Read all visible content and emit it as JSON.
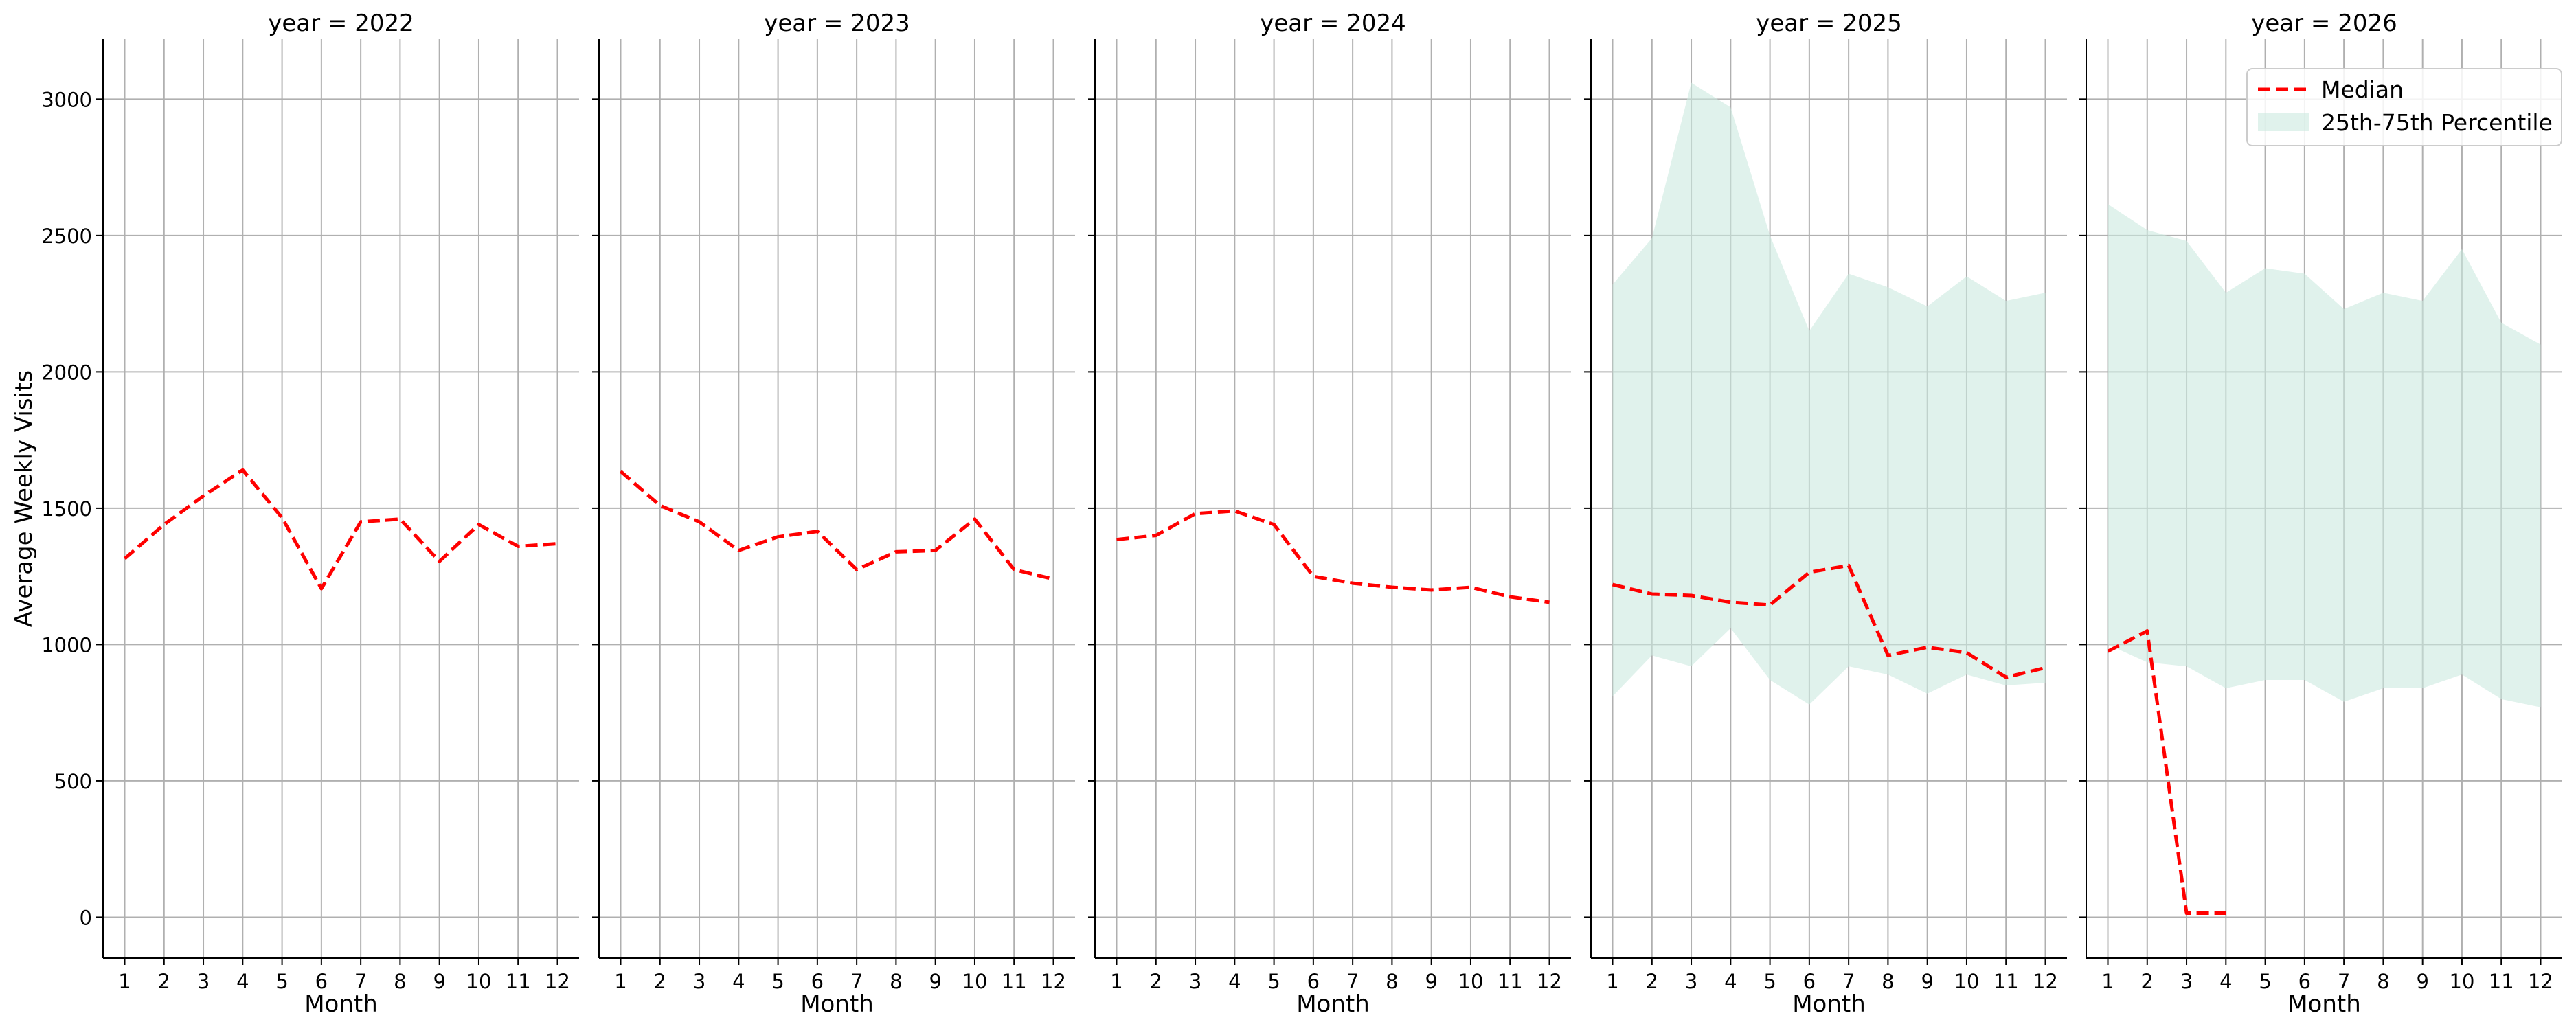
{
  "chart_data": {
    "type": "line",
    "ylabel": "Average Weekly Visits",
    "ylim": [
      -150,
      3220
    ],
    "yticks": [
      0,
      500,
      1000,
      1500,
      2000,
      2500,
      3000
    ],
    "xticks": [
      1,
      2,
      3,
      4,
      5,
      6,
      7,
      8,
      9,
      10,
      11,
      12
    ],
    "grid": true,
    "colors": {
      "median": "#ff0000",
      "band": "#cbe9df",
      "grid": "#b0b0b0"
    },
    "legend": {
      "placement": "top-right",
      "panel": 4,
      "entries": [
        {
          "label": "Median",
          "style": "dashed-line"
        },
        {
          "label": "25th-75th Percentile",
          "style": "filled-band"
        }
      ]
    },
    "panels": [
      {
        "title": "year = 2022",
        "xlabel": "Month",
        "median": [
          [
            1,
            1315
          ],
          [
            2,
            1440
          ],
          [
            3,
            1545
          ],
          [
            4,
            1640
          ],
          [
            5,
            1465
          ],
          [
            6,
            1205
          ],
          [
            7,
            1450
          ],
          [
            8,
            1460
          ],
          [
            9,
            1305
          ],
          [
            10,
            1440
          ],
          [
            11,
            1360
          ],
          [
            12,
            1370
          ]
        ],
        "band": []
      },
      {
        "title": "year = 2023",
        "xlabel": "Month",
        "median": [
          [
            1,
            1635
          ],
          [
            2,
            1510
          ],
          [
            3,
            1450
          ],
          [
            4,
            1345
          ],
          [
            5,
            1395
          ],
          [
            6,
            1415
          ],
          [
            7,
            1275
          ],
          [
            8,
            1340
          ],
          [
            9,
            1345
          ],
          [
            10,
            1460
          ],
          [
            11,
            1275
          ],
          [
            12,
            1240
          ]
        ],
        "band": []
      },
      {
        "title": "year = 2024",
        "xlabel": "Month",
        "median": [
          [
            1,
            1385
          ],
          [
            2,
            1400
          ],
          [
            3,
            1480
          ],
          [
            4,
            1490
          ],
          [
            5,
            1440
          ],
          [
            6,
            1250
          ],
          [
            7,
            1225
          ],
          [
            8,
            1210
          ],
          [
            9,
            1200
          ],
          [
            10,
            1210
          ],
          [
            11,
            1175
          ],
          [
            12,
            1155
          ]
        ],
        "band": []
      },
      {
        "title": "year = 2025",
        "xlabel": "Month",
        "median": [
          [
            1,
            1220
          ],
          [
            2,
            1185
          ],
          [
            3,
            1180
          ],
          [
            4,
            1155
          ],
          [
            5,
            1145
          ],
          [
            6,
            1265
          ],
          [
            7,
            1290
          ],
          [
            8,
            960
          ],
          [
            9,
            990
          ],
          [
            10,
            970
          ],
          [
            11,
            880
          ],
          [
            12,
            915
          ]
        ],
        "band": [
          [
            1,
            810,
            2320
          ],
          [
            2,
            960,
            2490
          ],
          [
            3,
            920,
            3060
          ],
          [
            4,
            1060,
            2970
          ],
          [
            5,
            870,
            2500
          ],
          [
            6,
            780,
            2150
          ],
          [
            7,
            920,
            2360
          ],
          [
            8,
            890,
            2310
          ],
          [
            9,
            820,
            2240
          ],
          [
            10,
            890,
            2350
          ],
          [
            11,
            850,
            2260
          ],
          [
            12,
            860,
            2290
          ]
        ]
      },
      {
        "title": "year = 2026",
        "xlabel": "Month",
        "median": [
          [
            1,
            975
          ],
          [
            2,
            1050
          ],
          [
            3,
            15
          ],
          [
            4,
            15
          ]
        ],
        "band": [
          [
            1,
            1000,
            2615
          ],
          [
            2,
            935,
            2520
          ],
          [
            3,
            920,
            2480
          ],
          [
            4,
            840,
            2290
          ],
          [
            5,
            870,
            2380
          ],
          [
            6,
            870,
            2360
          ],
          [
            7,
            790,
            2230
          ],
          [
            8,
            840,
            2290
          ],
          [
            9,
            840,
            2260
          ],
          [
            10,
            890,
            2450
          ],
          [
            11,
            800,
            2180
          ],
          [
            12,
            770,
            2100
          ]
        ]
      }
    ]
  }
}
